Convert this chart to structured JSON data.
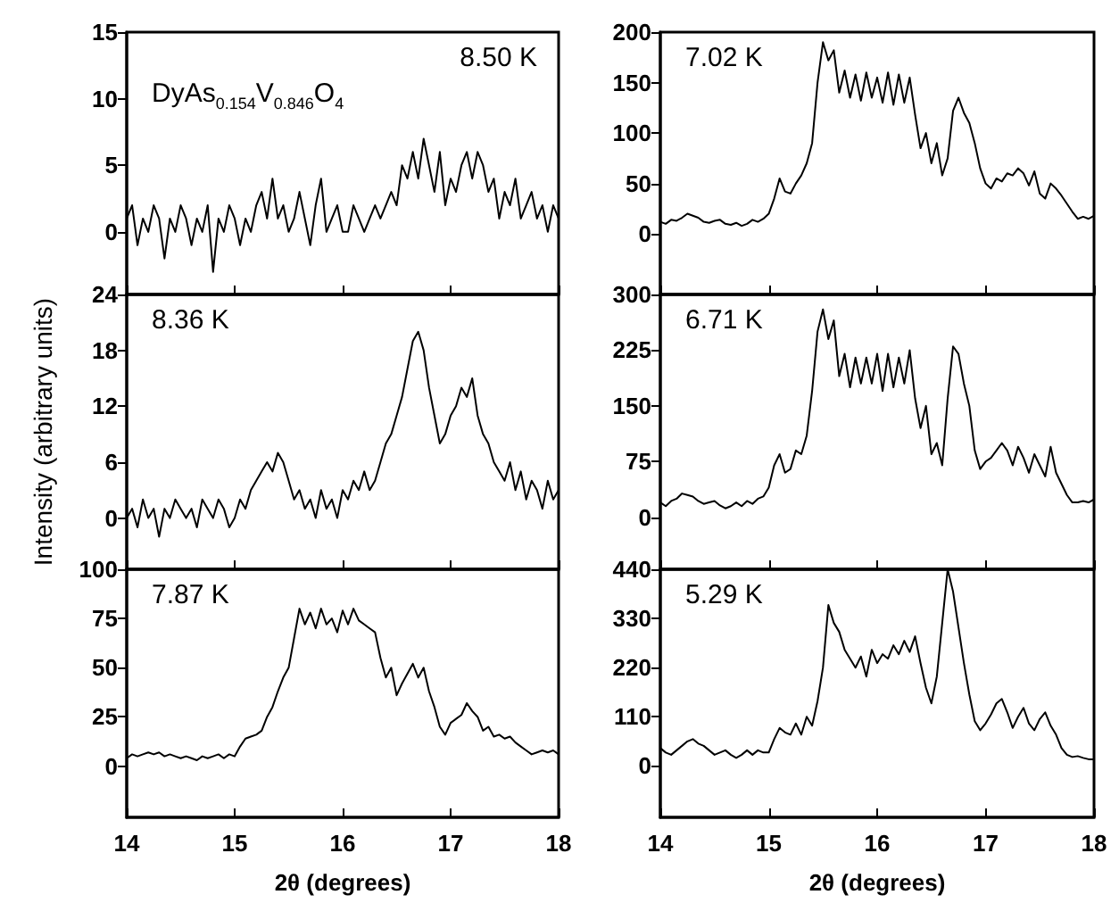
{
  "chart_data": [
    {
      "type": "line",
      "x": [
        14,
        14.05,
        14.1,
        14.15,
        14.2,
        14.25,
        14.3,
        14.35,
        14.4,
        14.45,
        14.5,
        14.55,
        14.6,
        14.65,
        14.7,
        14.75,
        14.8,
        14.85,
        14.9,
        14.95,
        15,
        15.05,
        15.1,
        15.15,
        15.2,
        15.25,
        15.3,
        15.35,
        15.4,
        15.45,
        15.5,
        15.55,
        15.6,
        15.65,
        15.7,
        15.75,
        15.8,
        15.85,
        15.9,
        15.95,
        16,
        16.05,
        16.1,
        16.15,
        16.2,
        16.25,
        16.3,
        16.35,
        16.4,
        16.45,
        16.5,
        16.55,
        16.6,
        16.65,
        16.7,
        16.75,
        16.8,
        16.85,
        16.9,
        16.95,
        17,
        17.05,
        17.1,
        17.15,
        17.2,
        17.25,
        17.3,
        17.35,
        17.4,
        17.45,
        17.5,
        17.55,
        17.6,
        17.65,
        17.7,
        17.75,
        17.8,
        17.85,
        17.9,
        17.95,
        18
      ],
      "annotations": [
        "8.50 K",
        "DyAs$_{0.154}$V$_{0.846}$O$_{4}$"
      ],
      "xlim": [
        14,
        18
      ],
      "xticks": [
        14,
        15,
        16,
        17,
        18
      ],
      "ylim": [
        -4.7,
        15
      ],
      "yticks": [
        0,
        5,
        10,
        15
      ],
      "tick_labels": "y",
      "marker": "none",
      "line_style": "solid",
      "grid": false,
      "series": [
        {
          "color": "#000000",
          "values": [
            1,
            2,
            -1,
            1,
            0,
            2,
            1,
            -2,
            1,
            0,
            2,
            1,
            -1,
            1,
            0,
            2,
            -3,
            1,
            0,
            2,
            1,
            -1,
            1,
            0,
            2,
            3,
            1,
            4,
            1,
            2,
            0,
            1,
            3,
            1,
            -1,
            2,
            4,
            0,
            1,
            2,
            0,
            0,
            2,
            1,
            0,
            1,
            2,
            1,
            2,
            3,
            2,
            5,
            4,
            6,
            4,
            7,
            5,
            3,
            6,
            2,
            4,
            3,
            5,
            6,
            4,
            6,
            5,
            3,
            4,
            1,
            3,
            2,
            4,
            1,
            2,
            3,
            1,
            2,
            0,
            2,
            1
          ]
        }
      ]
    },
    {
      "type": "line",
      "x": [
        14,
        14.05,
        14.1,
        14.15,
        14.2,
        14.25,
        14.3,
        14.35,
        14.4,
        14.45,
        14.5,
        14.55,
        14.6,
        14.65,
        14.7,
        14.75,
        14.8,
        14.85,
        14.9,
        14.95,
        15,
        15.05,
        15.1,
        15.15,
        15.2,
        15.25,
        15.3,
        15.35,
        15.4,
        15.45,
        15.5,
        15.55,
        15.6,
        15.65,
        15.7,
        15.75,
        15.8,
        15.85,
        15.9,
        15.95,
        16,
        16.05,
        16.1,
        16.15,
        16.2,
        16.25,
        16.3,
        16.35,
        16.4,
        16.45,
        16.5,
        16.55,
        16.6,
        16.65,
        16.7,
        16.75,
        16.8,
        16.85,
        16.9,
        16.95,
        17,
        17.05,
        17.1,
        17.15,
        17.2,
        17.25,
        17.3,
        17.35,
        17.4,
        17.45,
        17.5,
        17.55,
        17.6,
        17.65,
        17.7,
        17.75,
        17.8,
        17.85,
        17.9,
        17.95,
        18
      ],
      "annotations": [
        "7.02 K"
      ],
      "xlim": [
        14,
        18
      ],
      "xticks": [
        14,
        15,
        16,
        17,
        18
      ],
      "ylim": [
        -60,
        200
      ],
      "yticks": [
        0,
        50,
        100,
        150,
        200
      ],
      "tick_labels": "y",
      "marker": "none",
      "line_style": "solid",
      "grid": false,
      "series": [
        {
          "color": "#000000",
          "values": [
            12,
            10,
            14,
            13,
            16,
            20,
            18,
            16,
            12,
            11,
            13,
            14,
            10,
            9,
            11,
            8,
            10,
            14,
            12,
            15,
            20,
            35,
            55,
            42,
            40,
            50,
            58,
            70,
            90,
            150,
            190,
            172,
            182,
            140,
            162,
            135,
            158,
            132,
            160,
            135,
            155,
            130,
            160,
            128,
            158,
            130,
            155,
            118,
            85,
            100,
            70,
            90,
            58,
            75,
            122,
            135,
            120,
            110,
            90,
            65,
            50,
            45,
            55,
            52,
            60,
            58,
            65,
            60,
            48,
            62,
            40,
            35,
            50,
            45,
            38,
            30,
            22,
            15,
            17,
            15,
            18
          ]
        }
      ]
    },
    {
      "type": "line",
      "x": [
        14,
        14.05,
        14.1,
        14.15,
        14.2,
        14.25,
        14.3,
        14.35,
        14.4,
        14.45,
        14.5,
        14.55,
        14.6,
        14.65,
        14.7,
        14.75,
        14.8,
        14.85,
        14.9,
        14.95,
        15,
        15.05,
        15.1,
        15.15,
        15.2,
        15.25,
        15.3,
        15.35,
        15.4,
        15.45,
        15.5,
        15.55,
        15.6,
        15.65,
        15.7,
        15.75,
        15.8,
        15.85,
        15.9,
        15.95,
        16,
        16.05,
        16.1,
        16.15,
        16.2,
        16.25,
        16.3,
        16.35,
        16.4,
        16.45,
        16.5,
        16.55,
        16.6,
        16.65,
        16.7,
        16.75,
        16.8,
        16.85,
        16.9,
        16.95,
        17,
        17.05,
        17.1,
        17.15,
        17.2,
        17.25,
        17.3,
        17.35,
        17.4,
        17.45,
        17.5,
        17.55,
        17.6,
        17.65,
        17.7,
        17.75,
        17.8,
        17.85,
        17.9,
        17.95,
        18
      ],
      "ylabel": "Intensity (arbitrary units)",
      "annotations": [
        "8.36 K"
      ],
      "xlim": [
        14,
        18
      ],
      "xticks": [
        14,
        15,
        16,
        17,
        18
      ],
      "ylim": [
        -5.5,
        24
      ],
      "yticks": [
        0,
        6,
        12,
        18,
        24
      ],
      "tick_labels": "y",
      "marker": "none",
      "line_style": "solid",
      "grid": false,
      "series": [
        {
          "color": "#000000",
          "values": [
            0,
            1,
            -1,
            2,
            0,
            1,
            -2,
            1,
            0,
            2,
            1,
            0,
            1,
            -1,
            2,
            1,
            0,
            2,
            1,
            -1,
            0,
            2,
            1,
            3,
            4,
            5,
            6,
            5,
            7,
            6,
            4,
            2,
            3,
            1,
            2,
            0,
            3,
            1,
            2,
            0,
            3,
            2,
            4,
            3,
            5,
            3,
            4,
            6,
            8,
            9,
            11,
            13,
            16,
            19,
            20,
            18,
            14,
            11,
            8,
            9,
            11,
            12,
            14,
            13,
            15,
            11,
            9,
            8,
            6,
            5,
            4,
            6,
            3,
            5,
            2,
            4,
            3,
            1,
            4,
            2,
            3
          ]
        }
      ]
    },
    {
      "type": "line",
      "x": [
        14,
        14.05,
        14.1,
        14.15,
        14.2,
        14.25,
        14.3,
        14.35,
        14.4,
        14.45,
        14.5,
        14.55,
        14.6,
        14.65,
        14.7,
        14.75,
        14.8,
        14.85,
        14.9,
        14.95,
        15,
        15.05,
        15.1,
        15.15,
        15.2,
        15.25,
        15.3,
        15.35,
        15.4,
        15.45,
        15.5,
        15.55,
        15.6,
        15.65,
        15.7,
        15.75,
        15.8,
        15.85,
        15.9,
        15.95,
        16,
        16.05,
        16.1,
        16.15,
        16.2,
        16.25,
        16.3,
        16.35,
        16.4,
        16.45,
        16.5,
        16.55,
        16.6,
        16.65,
        16.7,
        16.75,
        16.8,
        16.85,
        16.9,
        16.95,
        17,
        17.05,
        17.1,
        17.15,
        17.2,
        17.25,
        17.3,
        17.35,
        17.4,
        17.45,
        17.5,
        17.55,
        17.6,
        17.65,
        17.7,
        17.75,
        17.8,
        17.85,
        17.9,
        17.95,
        18
      ],
      "annotations": [
        "6.71 K"
      ],
      "xlim": [
        14,
        18
      ],
      "xticks": [
        14,
        15,
        16,
        17,
        18
      ],
      "ylim": [
        -70,
        300
      ],
      "yticks": [
        0,
        75,
        150,
        225,
        300
      ],
      "tick_labels": "y",
      "marker": "none",
      "line_style": "solid",
      "grid": false,
      "series": [
        {
          "color": "#000000",
          "values": [
            20,
            15,
            22,
            25,
            32,
            30,
            28,
            22,
            18,
            20,
            22,
            16,
            12,
            15,
            20,
            15,
            22,
            18,
            25,
            28,
            40,
            70,
            85,
            60,
            65,
            90,
            85,
            110,
            170,
            250,
            280,
            240,
            265,
            190,
            220,
            175,
            215,
            180,
            215,
            180,
            220,
            170,
            220,
            175,
            215,
            180,
            225,
            160,
            120,
            150,
            85,
            100,
            70,
            160,
            230,
            220,
            180,
            150,
            90,
            65,
            75,
            80,
            90,
            100,
            90,
            70,
            95,
            80,
            60,
            85,
            70,
            55,
            95,
            60,
            45,
            30,
            20,
            20,
            22,
            20,
            24
          ]
        }
      ]
    },
    {
      "type": "line",
      "x": [
        14,
        14.05,
        14.1,
        14.15,
        14.2,
        14.25,
        14.3,
        14.35,
        14.4,
        14.45,
        14.5,
        14.55,
        14.6,
        14.65,
        14.7,
        14.75,
        14.8,
        14.85,
        14.9,
        14.95,
        15,
        15.05,
        15.1,
        15.15,
        15.2,
        15.25,
        15.3,
        15.35,
        15.4,
        15.45,
        15.5,
        15.55,
        15.6,
        15.65,
        15.7,
        15.75,
        15.8,
        15.85,
        15.9,
        15.95,
        16,
        16.05,
        16.1,
        16.15,
        16.2,
        16.25,
        16.3,
        16.35,
        16.4,
        16.45,
        16.5,
        16.55,
        16.6,
        16.65,
        16.7,
        16.75,
        16.8,
        16.85,
        16.9,
        16.95,
        17,
        17.05,
        17.1,
        17.15,
        17.2,
        17.25,
        17.3,
        17.35,
        17.4,
        17.45,
        17.5,
        17.55,
        17.6,
        17.65,
        17.7,
        17.75,
        17.8,
        17.85,
        17.9,
        17.95,
        18
      ],
      "xlabel": "2θ (degrees)",
      "annotations": [
        "7.87 K"
      ],
      "xlim": [
        14,
        18
      ],
      "xticks": [
        14,
        15,
        16,
        17,
        18
      ],
      "ylim": [
        -26,
        100
      ],
      "yticks": [
        0,
        25,
        50,
        75,
        100
      ],
      "marker": "none",
      "line_style": "solid",
      "grid": false,
      "series": [
        {
          "color": "#000000",
          "values": [
            4,
            6,
            5,
            6,
            7,
            6,
            7,
            5,
            6,
            5,
            4,
            5,
            4,
            3,
            5,
            4,
            5,
            6,
            4,
            6,
            5,
            10,
            14,
            15,
            16,
            18,
            25,
            30,
            38,
            45,
            50,
            65,
            80,
            72,
            78,
            70,
            80,
            72,
            75,
            68,
            79,
            72,
            80,
            74,
            72,
            70,
            68,
            55,
            45,
            50,
            36,
            42,
            47,
            52,
            45,
            50,
            38,
            30,
            20,
            16,
            22,
            24,
            26,
            32,
            28,
            25,
            18,
            20,
            15,
            16,
            14,
            15,
            12,
            10,
            8,
            6,
            7,
            8,
            7,
            8,
            6
          ]
        }
      ]
    },
    {
      "type": "line",
      "x": [
        14,
        14.05,
        14.1,
        14.15,
        14.2,
        14.25,
        14.3,
        14.35,
        14.4,
        14.45,
        14.5,
        14.55,
        14.6,
        14.65,
        14.7,
        14.75,
        14.8,
        14.85,
        14.9,
        14.95,
        15,
        15.05,
        15.1,
        15.15,
        15.2,
        15.25,
        15.3,
        15.35,
        15.4,
        15.45,
        15.5,
        15.55,
        15.6,
        15.65,
        15.7,
        15.75,
        15.8,
        15.85,
        15.9,
        15.95,
        16,
        16.05,
        16.1,
        16.15,
        16.2,
        16.25,
        16.3,
        16.35,
        16.4,
        16.45,
        16.5,
        16.55,
        16.6,
        16.65,
        16.7,
        16.75,
        16.8,
        16.85,
        16.9,
        16.95,
        17,
        17.05,
        17.1,
        17.15,
        17.2,
        17.25,
        17.3,
        17.35,
        17.4,
        17.45,
        17.5,
        17.55,
        17.6,
        17.65,
        17.7,
        17.75,
        17.8,
        17.85,
        17.9,
        17.95,
        18
      ],
      "xlabel": "2θ (degrees)",
      "annotations": [
        "5.29 K"
      ],
      "xlim": [
        14,
        18
      ],
      "xticks": [
        14,
        15,
        16,
        17,
        18
      ],
      "ylim": [
        -115,
        440
      ],
      "yticks": [
        0,
        110,
        220,
        330,
        440
      ],
      "marker": "none",
      "line_style": "solid",
      "grid": false,
      "series": [
        {
          "color": "#000000",
          "values": [
            40,
            30,
            25,
            35,
            45,
            55,
            60,
            50,
            45,
            35,
            25,
            30,
            35,
            25,
            18,
            25,
            35,
            25,
            35,
            30,
            30,
            60,
            85,
            75,
            70,
            95,
            70,
            110,
            90,
            145,
            220,
            360,
            320,
            300,
            260,
            240,
            220,
            245,
            200,
            260,
            230,
            250,
            240,
            270,
            250,
            280,
            255,
            290,
            230,
            175,
            140,
            200,
            320,
            440,
            390,
            310,
            230,
            160,
            100,
            80,
            95,
            115,
            140,
            150,
            120,
            85,
            110,
            130,
            95,
            80,
            105,
            120,
            90,
            70,
            40,
            25,
            20,
            22,
            18,
            15,
            15
          ]
        }
      ]
    }
  ]
}
